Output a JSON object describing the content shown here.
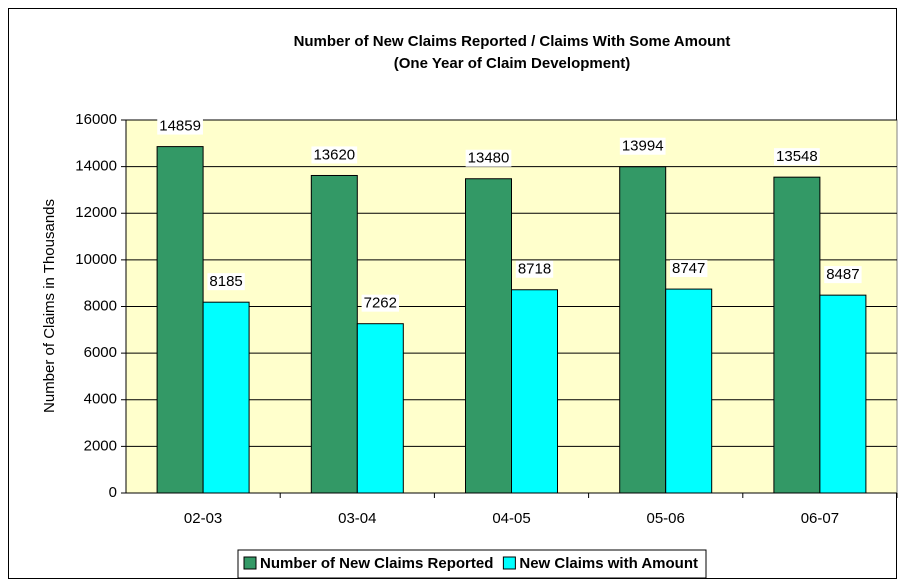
{
  "chart_data": {
    "type": "bar",
    "title": "Number of New Claims Reported / Claims With Some Amount",
    "subtitle": "(One Year of Claim Development)",
    "y_label": "Number of Claims in Thousands",
    "categories": [
      "02-03",
      "03-04",
      "04-05",
      "05-06",
      "06-07"
    ],
    "series": [
      {
        "name": "Number of New Claims Reported",
        "color": "#339966",
        "values": [
          14859,
          13620,
          13480,
          13994,
          13548
        ]
      },
      {
        "name": "New Claims with Amount",
        "color": "#00ffff",
        "values": [
          8185,
          7262,
          8718,
          8747,
          8487
        ]
      }
    ],
    "ylim": [
      0,
      16000
    ],
    "yticks": [
      0,
      2000,
      4000,
      6000,
      8000,
      10000,
      12000,
      14000,
      16000
    ],
    "grid": true,
    "legend": "bottom",
    "plot_background": "#ffffcc"
  }
}
